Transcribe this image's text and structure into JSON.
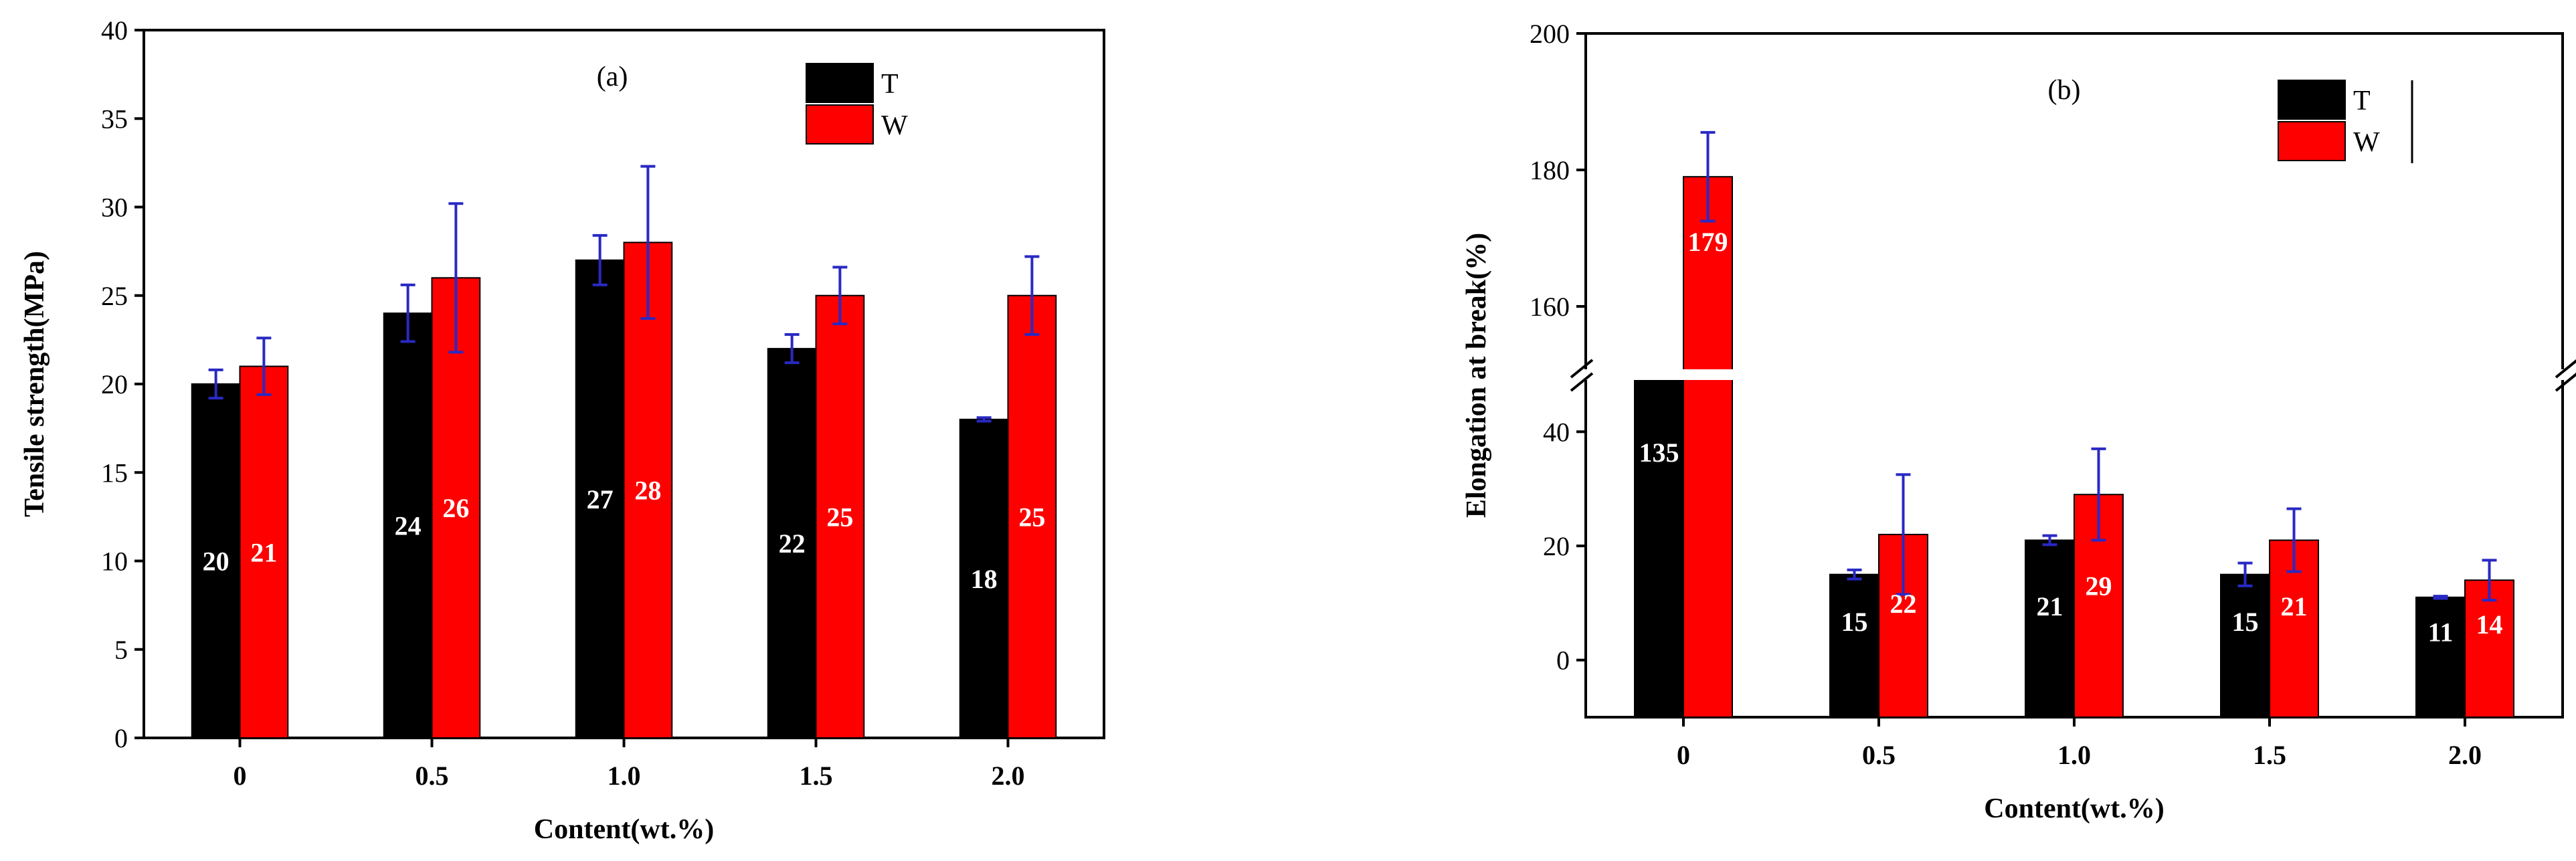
{
  "colors": {
    "T": "#000000",
    "W": "#ff0000",
    "error": "#2929c4",
    "axis": "#000000",
    "value_label": "#ffffff"
  },
  "chart_data": [
    {
      "type": "bar",
      "panel": "(a)",
      "categories": [
        "0",
        "0.5",
        "1.0",
        "1.5",
        "2.0"
      ],
      "series": [
        {
          "name": "T",
          "values": [
            20,
            24,
            27,
            22,
            18
          ],
          "errors": [
            0.8,
            1.6,
            1.4,
            0.8,
            0.1
          ],
          "labels": [
            "20",
            "24",
            "27",
            "22",
            "18"
          ]
        },
        {
          "name": "W",
          "values": [
            21,
            26,
            28,
            25,
            25
          ],
          "errors": [
            1.6,
            4.2,
            4.3,
            1.6,
            2.2
          ],
          "labels": [
            "21",
            "26",
            "28",
            "25",
            "25"
          ]
        }
      ],
      "xlabel": "Content(wt.%)",
      "ylabel": "Tensile strength(MPa)",
      "ylim": [
        0,
        40
      ],
      "yticks": [
        "0",
        "5",
        "10",
        "15",
        "20",
        "25",
        "30",
        "35",
        "40"
      ],
      "legend": "top-right"
    },
    {
      "type": "bar",
      "panel": "(b)",
      "categories": [
        "0",
        "0.5",
        "1.0",
        "1.5",
        "2.0"
      ],
      "series": [
        {
          "name": "T",
          "values": [
            135,
            15,
            21,
            15,
            11
          ],
          "errors": [
            0,
            0.8,
            0.8,
            2,
            0.2
          ],
          "labels": [
            "135",
            "15",
            "21",
            "15",
            "11"
          ]
        },
        {
          "name": "W",
          "values": [
            179,
            22,
            29,
            21,
            14
          ],
          "errors": [
            6.5,
            10.5,
            8,
            5.5,
            3.5
          ],
          "labels": [
            "179",
            "22",
            "29",
            "21",
            "14"
          ]
        }
      ],
      "xlabel": "Content(wt.%)",
      "ylabel": "Elongation at break(%)",
      "y_axis_break": {
        "lower_range": [
          -10,
          50
        ],
        "upper_range": [
          150,
          200
        ]
      },
      "yticks_lower": [
        "0",
        "20",
        "40"
      ],
      "yticks_upper": [
        "160",
        "180",
        "200"
      ],
      "legend": "top-right"
    }
  ]
}
